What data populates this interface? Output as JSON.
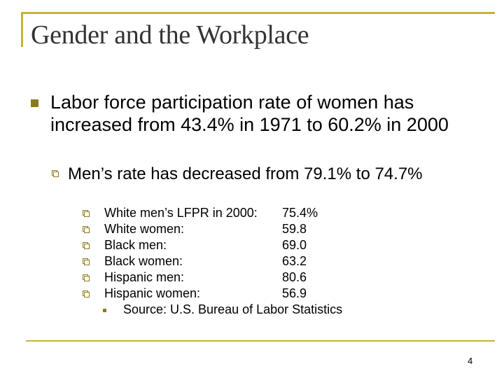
{
  "slide": {
    "title": "Gender and the Workplace",
    "page_number": "4",
    "accent_color": "#c8b237",
    "bullet_color": "#8c7a1e"
  },
  "bullet_1": {
    "icon": "square-bullet-icon",
    "text": "Labor force participation rate of women has increased from 43.4% in 1971 to 60.2% in 2000"
  },
  "bullet_2": {
    "icon": "checkbox-bullet-icon",
    "text": "Men’s rate has decreased from 79.1% to 74.7%"
  },
  "rates": [
    {
      "label": "White men’s LFPR in 2000:",
      "value": "75.4%"
    },
    {
      "label": "White women:",
      "value": "59.8"
    },
    {
      "label": "Black men:",
      "value": "69.0"
    },
    {
      "label": "Black women:",
      "value": "63.2"
    },
    {
      "label": "Hispanic men:",
      "value": "80.6"
    },
    {
      "label": "Hispanic women:",
      "value": "56.9"
    }
  ],
  "source": {
    "icon": "small-square-bullet-icon",
    "text": "Source: U.S. Bureau of Labor Statistics"
  }
}
